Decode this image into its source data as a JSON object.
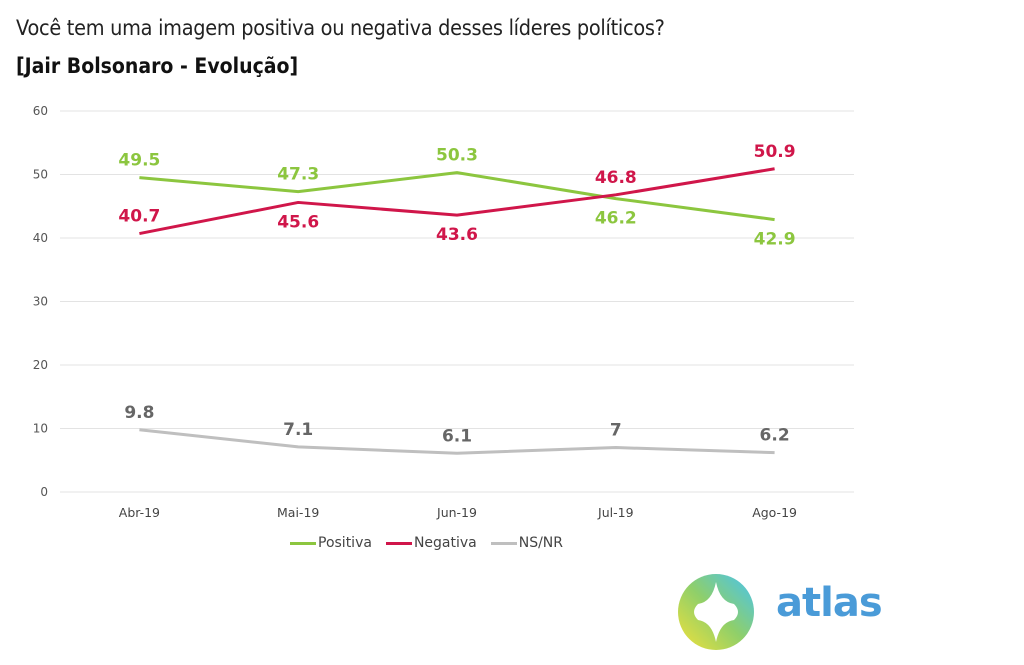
{
  "header": {
    "title": "Você tem uma imagem positiva ou negativa desses líderes políticos?",
    "subtitle": "[Jair Bolsonaro - Evolução]"
  },
  "chart_data": {
    "type": "line",
    "title": "Você tem uma imagem positiva ou negativa desses líderes políticos?",
    "subtitle": "[Jair Bolsonaro - Evolução]",
    "xlabel": "",
    "ylabel": "",
    "categories": [
      "Abr-19",
      "Mai-19",
      "Jun-19",
      "Jul-19",
      "Ago-19"
    ],
    "yticks": [
      0,
      10,
      20,
      30,
      40,
      50,
      60
    ],
    "ylim": [
      0,
      60
    ],
    "grid": true,
    "legend": "bottom",
    "series": [
      {
        "name": "Positiva",
        "color": "#8cc63f",
        "values": [
          49.5,
          47.3,
          50.3,
          46.2,
          42.9
        ],
        "labels": [
          "49.5",
          "47.3",
          "50.3",
          "46.2",
          "42.9"
        ],
        "label_pos": [
          "above",
          "above",
          "above",
          "below",
          "below"
        ]
      },
      {
        "name": "Negativa",
        "color": "#d0164a",
        "values": [
          40.7,
          45.6,
          43.6,
          46.8,
          50.9
        ],
        "labels": [
          "40.7",
          "45.6",
          "43.6",
          "46.8",
          "50.9"
        ],
        "label_pos": [
          "above",
          "below",
          "below",
          "above",
          "above"
        ]
      },
      {
        "name": "NS/NR",
        "color": "#bfbfbf",
        "label_color": "#666666",
        "values": [
          9.8,
          7.1,
          6.1,
          7,
          6.2
        ],
        "labels": [
          "9.8",
          "7.1",
          "6.1",
          "7",
          "6.2"
        ],
        "label_pos": [
          "above",
          "above",
          "above",
          "above",
          "above"
        ]
      }
    ]
  },
  "logo": {
    "text": "atlas",
    "icon": "atlas-compass-icon"
  }
}
